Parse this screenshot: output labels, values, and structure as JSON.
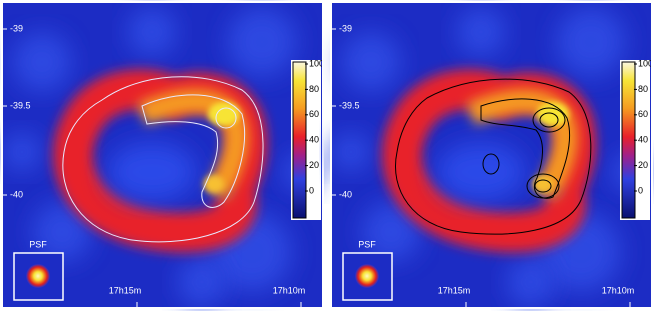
{
  "panels": [
    {
      "dec_labels": [
        "-39",
        "-39.5",
        "-40"
      ],
      "ra_labels": [
        "17h15m",
        "17h10m"
      ],
      "colorbar_ticks": [
        100,
        80,
        60,
        40,
        20,
        0
      ],
      "psf_label": "PSF"
    },
    {
      "dec_labels": [
        "-39",
        "-39.5",
        "-40"
      ],
      "ra_labels": [
        "17h15m",
        "17h10m"
      ],
      "colorbar_ticks": [
        100,
        80,
        60,
        40,
        20,
        0
      ],
      "psf_label": "PSF"
    }
  ]
}
